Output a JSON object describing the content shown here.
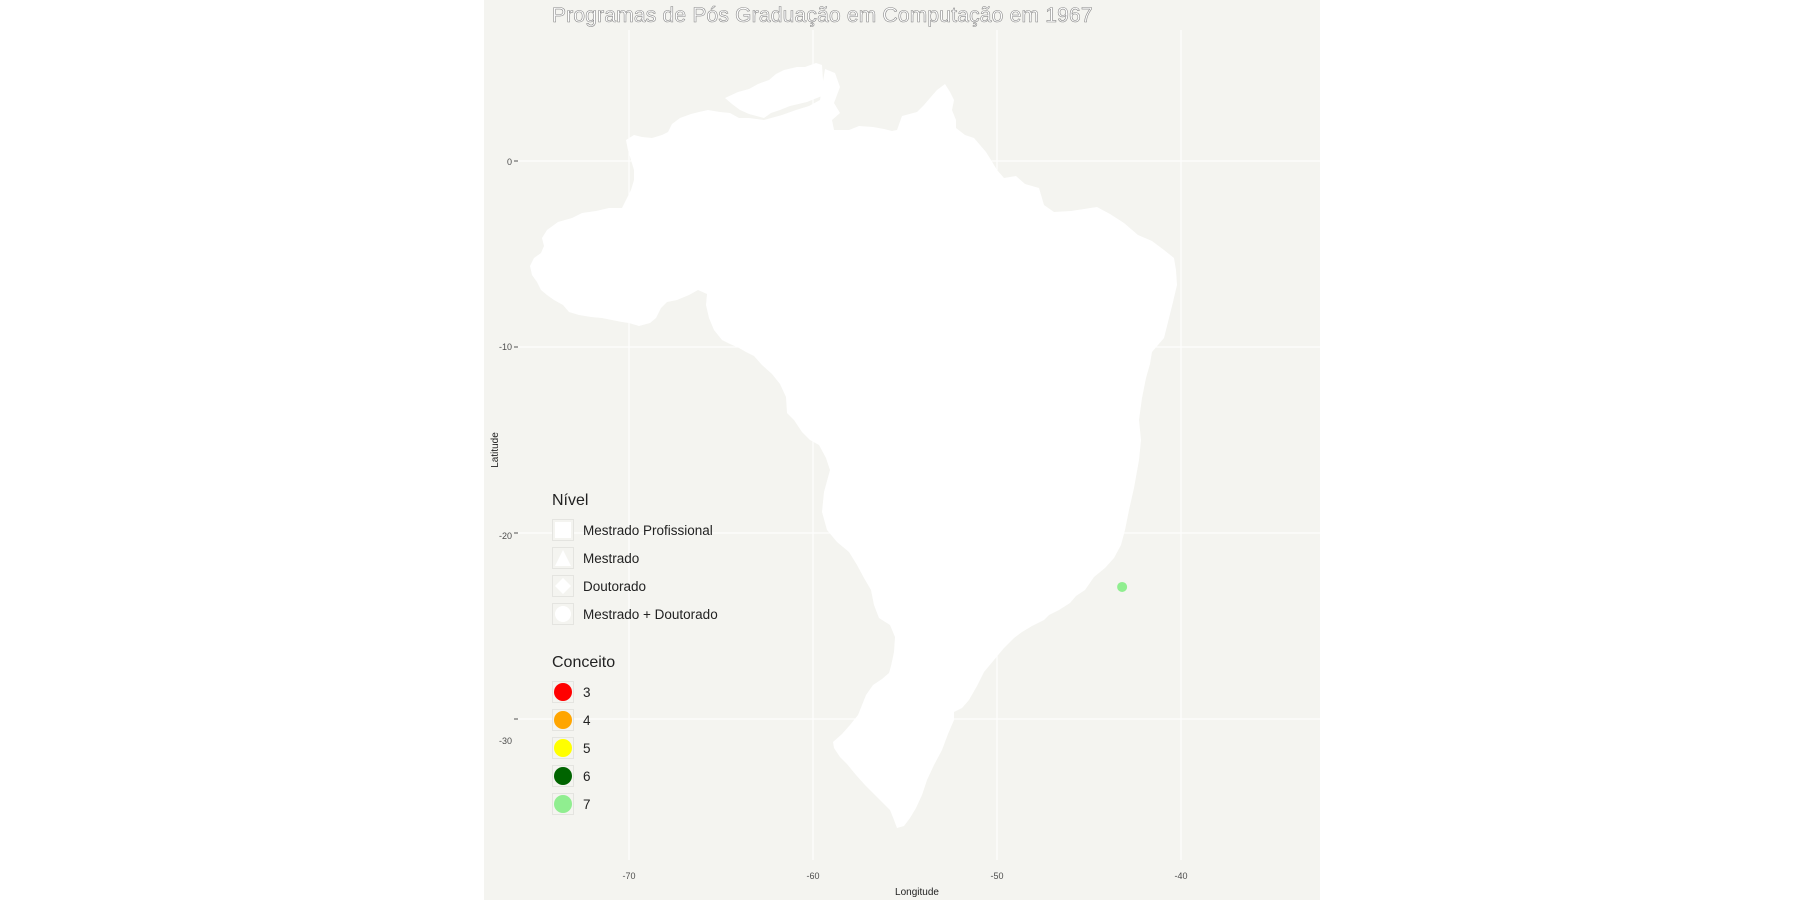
{
  "title": "Programas de Pós Graduação em Computação em 1967",
  "axes": {
    "xlabel": "Longitude",
    "ylabel": "Latitude",
    "x_ticks": [
      "-70",
      "-60",
      "-50",
      "-40"
    ],
    "y_ticks": [
      "0",
      "-10",
      "-20",
      "-30"
    ]
  },
  "chart_data": {
    "type": "scatter",
    "title": "Programas de Pós Graduação em Computação em 1967",
    "xlabel": "Longitude",
    "ylabel": "Latitude",
    "x_ticks": [
      -70,
      -60,
      -50,
      -40
    ],
    "y_ticks": [
      0,
      -10,
      -20,
      -30
    ],
    "xlim": [
      -79.5,
      -34.5
    ],
    "ylim": [
      -38.8,
      8.2
    ],
    "grid": true,
    "points": [
      {
        "lon": -43.2,
        "lat": -22.9,
        "conceito": "7",
        "color": "#90ee90"
      }
    ]
  },
  "legend_nivel": {
    "title": "Nível",
    "items": [
      {
        "label": "Mestrado Profissional",
        "shape": "square"
      },
      {
        "label": "Mestrado",
        "shape": "triangle"
      },
      {
        "label": "Doutorado",
        "shape": "diamond"
      },
      {
        "label": "Mestrado + Doutorado",
        "shape": "circle"
      }
    ]
  },
  "legend_conceito": {
    "title": "Conceito",
    "items": [
      {
        "label": "3",
        "color": "#ff0000"
      },
      {
        "label": "4",
        "color": "#ffa500"
      },
      {
        "label": "5",
        "color": "#ffff00"
      },
      {
        "label": "6",
        "color": "#006400"
      },
      {
        "label": "7",
        "color": "#90ee90"
      }
    ]
  },
  "colors": {
    "panel": "#f4f4f0",
    "land": "#ffffff",
    "grid": "#ffffff"
  }
}
